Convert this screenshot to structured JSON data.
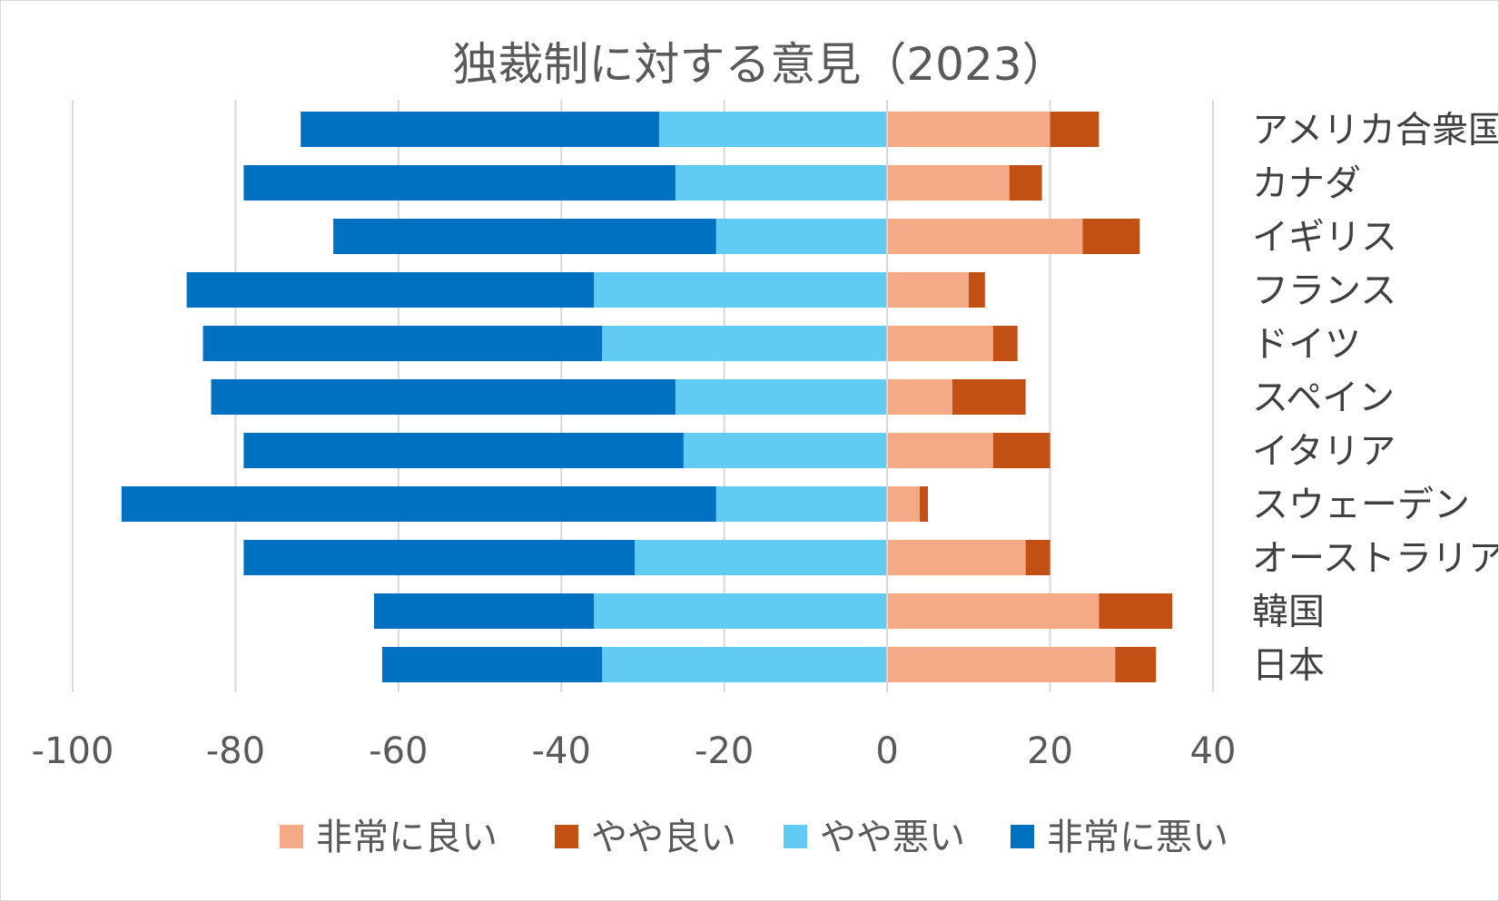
{
  "chart_data": {
    "type": "bar",
    "orientation": "horizontal",
    "stacked": "diverging",
    "title": "独裁制に対する意見（2023）",
    "xlabel": "",
    "ylabel": "",
    "xlim": [
      -100,
      40
    ],
    "xticks": [
      -100,
      -80,
      -60,
      -40,
      -20,
      0,
      20,
      40
    ],
    "xtick_labels": [
      "-100",
      "-80",
      "-60",
      "-40",
      "-20",
      "0",
      "20",
      "40"
    ],
    "grid": "vertical",
    "category_axis_position": "right",
    "legend_position": "bottom",
    "categories": [
      "アメリカ合衆国",
      "カナダ",
      "イギリス",
      "フランス",
      "ドイツ",
      "スペイン",
      "イタリア",
      "スウェーデン",
      "オーストラリア",
      "韓国",
      "日本"
    ],
    "series": [
      {
        "name": "非常に良い",
        "color": "#f4aa86",
        "values": [
          20,
          15,
          24,
          10,
          13,
          8,
          13,
          4,
          17,
          26,
          28
        ]
      },
      {
        "name": "やや良い",
        "color": "#c24f14",
        "values": [
          6,
          4,
          7,
          2,
          3,
          9,
          7,
          1,
          3,
          9,
          5
        ]
      },
      {
        "name": "やや悪い",
        "color": "#61cbf4",
        "values": [
          -28,
          -26,
          -21,
          -36,
          -35,
          -26,
          -25,
          -21,
          -31,
          -36,
          -35
        ]
      },
      {
        "name": "非常に悪い",
        "color": "#0070c0",
        "values": [
          -44,
          -53,
          -47,
          -50,
          -49,
          -57,
          -54,
          -73,
          -48,
          -27,
          -27
        ]
      }
    ]
  }
}
